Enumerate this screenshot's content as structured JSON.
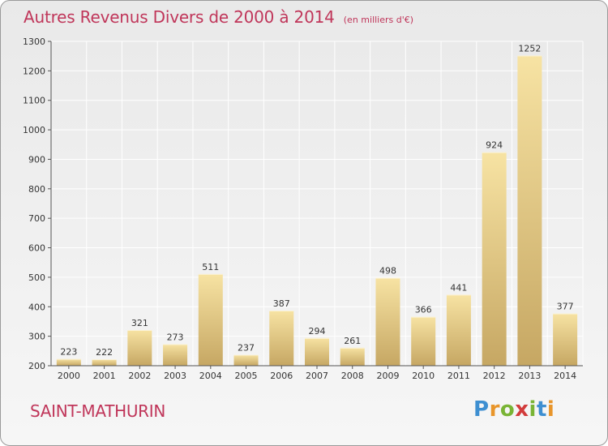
{
  "colors": {
    "title": "#c0365a",
    "bar_light": "#f7e3a3",
    "bar_dark": "#c6a763",
    "grid": "#ffffff",
    "axis": "#555555",
    "text": "#333333"
  },
  "town": "SAINT-MATHURIN",
  "logo": {
    "text": "Proxiti",
    "letters": [
      {
        "ch": "P",
        "color": "#3e8fd1"
      },
      {
        "ch": "r",
        "color": "#e8952a"
      },
      {
        "ch": "o",
        "color": "#79b435"
      },
      {
        "ch": "x",
        "color": "#d23c3c"
      },
      {
        "ch": "i",
        "color": "#79b435"
      },
      {
        "ch": "t",
        "color": "#3e8fd1"
      },
      {
        "ch": "i",
        "color": "#e8952a"
      }
    ]
  },
  "chart_data": {
    "type": "bar",
    "title": "Autres Revenus Divers de 2000 à 2014",
    "subtitle": "(en milliers d'€)",
    "xlabel": "",
    "ylabel": "",
    "categories": [
      "2000",
      "2001",
      "2002",
      "2003",
      "2004",
      "2005",
      "2006",
      "2007",
      "2008",
      "2009",
      "2010",
      "2011",
      "2012",
      "2013",
      "2014"
    ],
    "values": [
      223,
      222,
      321,
      273,
      511,
      237,
      387,
      294,
      261,
      498,
      366,
      441,
      924,
      1252,
      377
    ],
    "ylim": [
      200,
      1300
    ],
    "yticks": [
      200,
      300,
      400,
      500,
      600,
      700,
      800,
      900,
      1000,
      1100,
      1200,
      1300
    ],
    "grid": true,
    "data_labels": true
  }
}
